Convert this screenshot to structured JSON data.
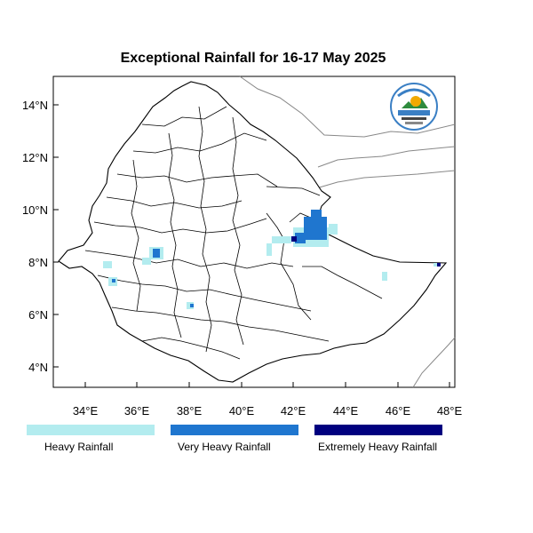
{
  "title": "Exceptional Rainfall for 16-17 May 2025",
  "axes": {
    "x_ticks": [
      "34°E",
      "36°E",
      "38°E",
      "40°E",
      "42°E",
      "44°E",
      "46°E",
      "48°E"
    ],
    "y_ticks": [
      "4°N",
      "6°N",
      "8°N",
      "10°N",
      "12°N",
      "14°N"
    ]
  },
  "legend": [
    {
      "label": "Heavy Rainfall",
      "color": "#b3ecef"
    },
    {
      "label": "Very Heavy Rainfall",
      "color": "#1f76cf"
    },
    {
      "label": "Extremely Heavy Rainfall",
      "color": "#00007f"
    }
  ],
  "logo": {
    "name": "ethiopian-meteorology-institute-logo"
  }
}
